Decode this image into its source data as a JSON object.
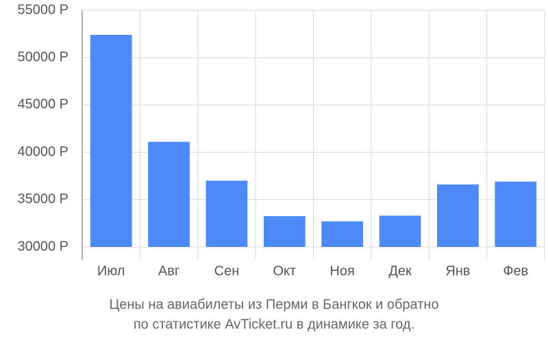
{
  "chart_data": {
    "type": "bar",
    "title": [
      "Цены на авиабилеты из Перми в Бангкок и обратно",
      "по статистике AvTicket.ru в динамике за год."
    ],
    "categories": [
      "Июл",
      "Авг",
      "Сен",
      "Окт",
      "Ноя",
      "Дек",
      "Янв",
      "Фев"
    ],
    "values": [
      52400,
      41100,
      37000,
      33250,
      32700,
      33300,
      36600,
      36900
    ],
    "color": "#4d8af8",
    "ylim": [
      30000,
      55000
    ],
    "yticks": [
      {
        "value": 30000,
        "label": "30000 Р"
      },
      {
        "value": 35000,
        "label": "35000 Р"
      },
      {
        "value": 40000,
        "label": "40000 Р"
      },
      {
        "value": 45000,
        "label": "45000 Р"
      },
      {
        "value": 50000,
        "label": "50000 Р"
      },
      {
        "value": 55000,
        "label": "55000 Р"
      }
    ],
    "grid": true
  }
}
